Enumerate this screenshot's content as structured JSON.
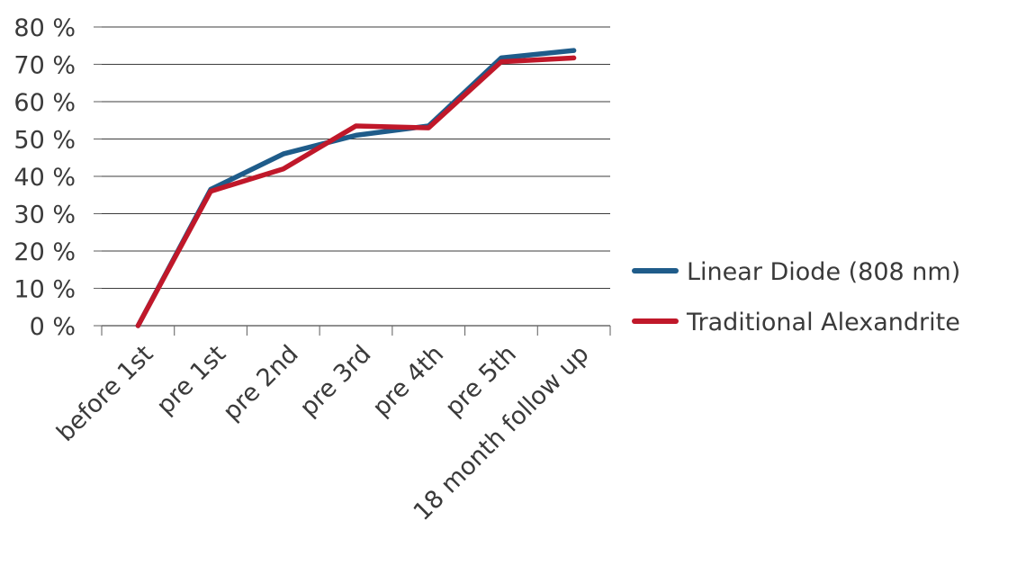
{
  "chart_data": {
    "type": "line",
    "categories": [
      "before 1st",
      "pre 1st",
      "pre 2nd",
      "pre 3rd",
      "pre 4th",
      "pre 5th",
      "18 month follow up"
    ],
    "series": [
      {
        "name": "Linear Diode (808 nm)",
        "values": [
          0,
          36.5,
          46,
          51,
          53.5,
          71.7,
          73.7
        ],
        "color": "#1f5c8a"
      },
      {
        "name": "Traditional Alexandrite",
        "values": [
          0,
          36,
          42,
          53.5,
          53,
          70.7,
          71.7
        ],
        "color": "#c0182a"
      }
    ],
    "yticks": [
      "0 %",
      "10 %",
      "20 %",
      "30 %",
      "40 %",
      "50 %",
      "60 %",
      "70 %",
      "80 %"
    ],
    "ylim": [
      0,
      80
    ],
    "ystep": 10,
    "grid": true,
    "legend_position": "right"
  }
}
